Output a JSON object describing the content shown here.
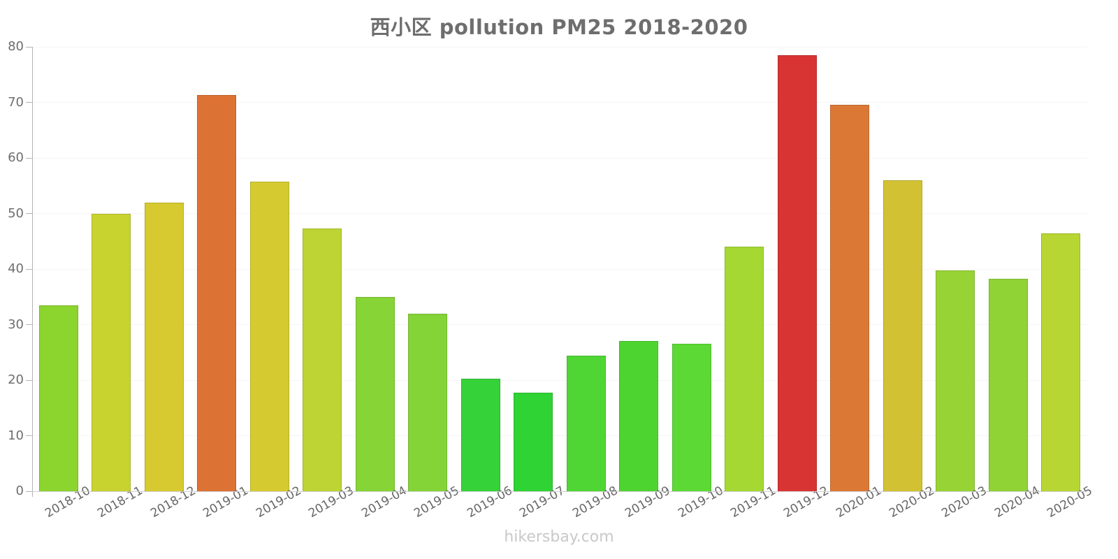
{
  "title": "西小区 pollution PM25 2018-2020",
  "watermark": "hikersbay.com",
  "chart_data": {
    "type": "bar",
    "title": "西小区 pollution PM25 2018-2020",
    "xlabel": "",
    "ylabel": "",
    "ylim": [
      0,
      80
    ],
    "yticks": [
      0,
      10,
      20,
      30,
      40,
      50,
      60,
      70,
      80
    ],
    "grid": true,
    "legend": false,
    "categories": [
      "2018-10",
      "2018-11",
      "2018-12",
      "2019-01",
      "2019-02",
      "2019-03",
      "2019-04",
      "2019-05",
      "2019-06",
      "2019-07",
      "2019-08",
      "2019-09",
      "2019-10",
      "2019-11",
      "2019-12",
      "2020-01",
      "2020-02",
      "2020-03",
      "2020-04",
      "2020-05"
    ],
    "values": [
      33.5,
      50,
      52,
      71.3,
      55.7,
      47.3,
      35,
      32,
      20.3,
      17.7,
      24.4,
      27,
      26.6,
      44,
      78.5,
      69.6,
      56,
      39.7,
      38.2,
      46.4
    ],
    "bar_colors": [
      "#8cd42e",
      "#c9d32f",
      "#d6ca30",
      "#dc7233",
      "#d5cb31",
      "#bed334",
      "#86d436",
      "#84d438",
      "#35d239",
      "#2fd334",
      "#4fd634",
      "#4ed431",
      "#5cd935",
      "#a5d832",
      "#d83434",
      "#dc7836",
      "#d2c233",
      "#97d334",
      "#8fd335",
      "#b7d633"
    ]
  },
  "style": {
    "title_color": "#6e6e6e",
    "axis_text_color": "#666666",
    "yaxis_line_color": "#b3b3b3",
    "xaxis_line_color": "#cfcfcf",
    "grid_color": "#f5f5f5",
    "tick_color": "#b5b5b5",
    "watermark_color": "#c9c9c9",
    "bar_border": "rgba(0,0,0,0.14)"
  }
}
